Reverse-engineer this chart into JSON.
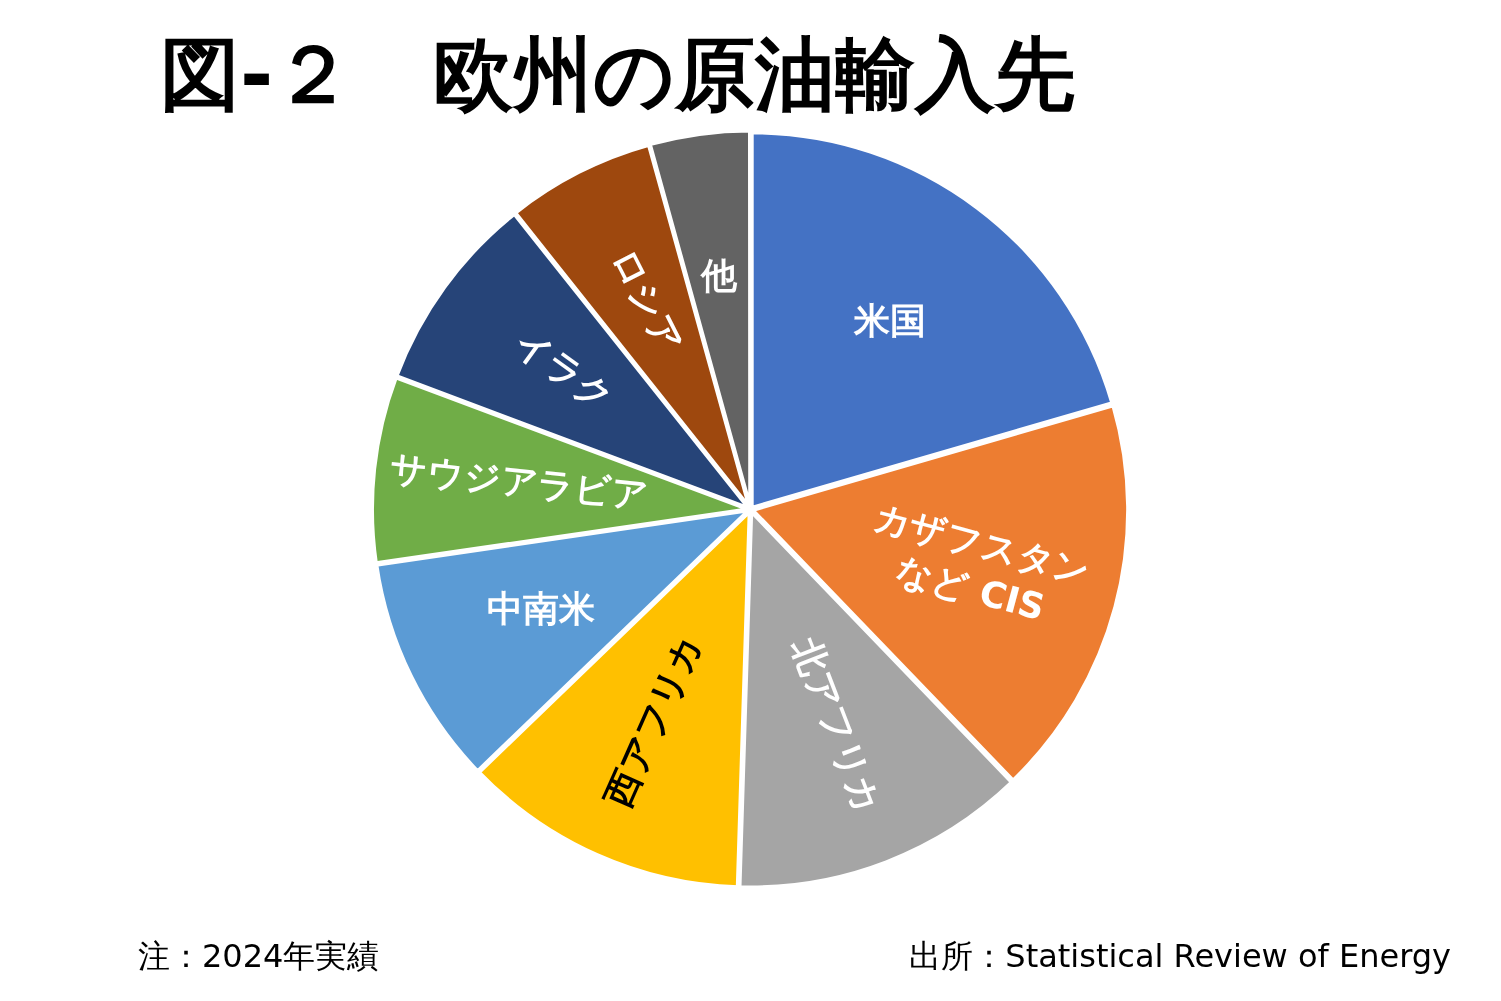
{
  "chart_data": {
    "type": "pie",
    "title": "図-２　欧州の原油輸入先",
    "categories": [
      "米国",
      "カザフスタン\nなど CIS",
      "北アフリカ",
      "西アフリカ",
      "中南米",
      "サウジアラビア",
      "イラク",
      "ロシア",
      "他"
    ],
    "values": [
      20.5,
      17.3,
      12.7,
      12.3,
      9.9,
      8.0,
      8.6,
      6.4,
      4.3
    ],
    "colors": [
      "#4472c4",
      "#ed7d31",
      "#a5a5a5",
      "#ffc000",
      "#5b9bd5",
      "#70ad47",
      "#264478",
      "#9e480e",
      "#636363"
    ],
    "legend": false,
    "annotations": [
      "注：2024年実績",
      "出所：Statistical Review of Energy"
    ]
  }
}
